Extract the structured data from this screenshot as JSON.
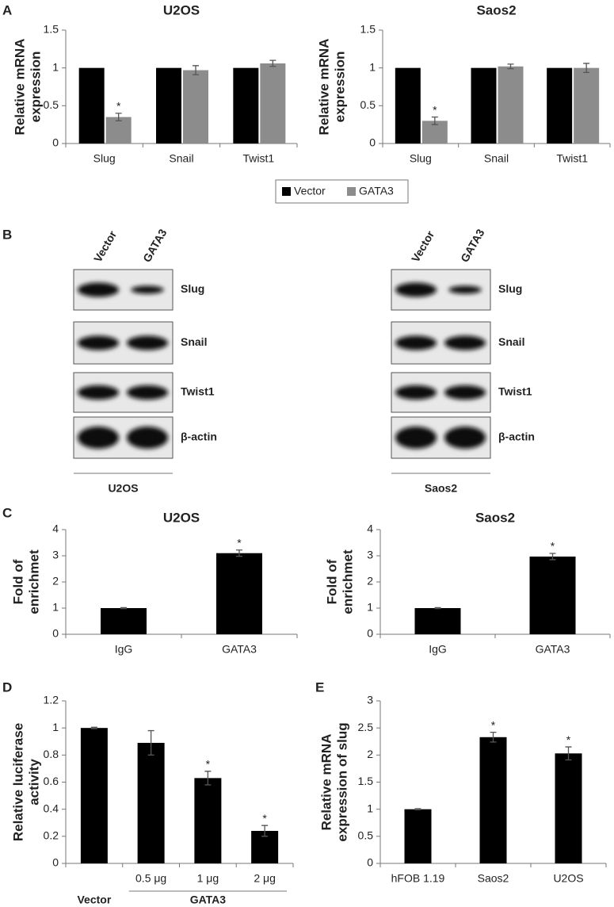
{
  "panel_labels": [
    "A",
    "B",
    "C",
    "D",
    "E"
  ],
  "chart_data": [
    {
      "type": "bar",
      "title": "U2OS",
      "ylabel": [
        "Relative mRNA",
        "expression"
      ],
      "categories": [
        "Slug",
        "Snail",
        "Twist1"
      ],
      "series": [
        {
          "name": "Vector",
          "color": "#000000",
          "values": [
            1,
            1,
            1
          ]
        },
        {
          "name": "GATA3",
          "color": "#8c8c8c",
          "values": [
            0.35,
            0.97,
            1.06
          ],
          "errors": [
            0.05,
            0.06,
            0.04
          ],
          "markers": [
            "*",
            null,
            null
          ]
        }
      ],
      "ylim": [
        0,
        1.5
      ],
      "yticks": [
        0,
        0.5,
        1,
        1.5
      ]
    },
    {
      "type": "bar",
      "title": "Saos2",
      "ylabel": [
        "Relative mRNA",
        "expression"
      ],
      "categories": [
        "Slug",
        "Snail",
        "Twist1"
      ],
      "series": [
        {
          "color": "#000000",
          "values": [
            1,
            1,
            1
          ]
        },
        {
          "color": "#8c8c8c",
          "values": [
            0.3,
            1.02,
            1.0
          ],
          "errors": [
            0.05,
            0.03,
            0.06
          ],
          "markers": [
            "*",
            null,
            null
          ]
        }
      ],
      "ylim": [
        0,
        1.5
      ],
      "yticks": [
        0,
        0.5,
        1,
        1.5
      ]
    },
    {
      "type": "bar",
      "title": "U2OS",
      "ylabel": [
        "Fold of",
        "enrichmet"
      ],
      "categories": [
        "IgG",
        "GATA3"
      ],
      "values": [
        1,
        3.1
      ],
      "errors": [
        0.02,
        0.12
      ],
      "markers": [
        null,
        "*"
      ],
      "color": "#000000",
      "ylim": [
        0,
        4
      ],
      "yticks": [
        0,
        1,
        2,
        3,
        4
      ]
    },
    {
      "type": "bar",
      "title": "Saos2",
      "ylabel": [
        "Fold of",
        "enrichmet"
      ],
      "categories": [
        "IgG",
        "GATA3"
      ],
      "values": [
        1,
        2.97
      ],
      "errors": [
        0.02,
        0.12
      ],
      "markers": [
        null,
        "*"
      ],
      "color": "#000000",
      "ylim": [
        0,
        4
      ],
      "yticks": [
        0,
        1,
        2,
        3,
        4
      ]
    },
    {
      "type": "bar",
      "ylabel": [
        "Relative luciferase",
        "activity"
      ],
      "categories": [
        null,
        "0.5 μg",
        "1 μg",
        "2 μg"
      ],
      "category_groups": [
        {
          "label": "Vector",
          "count": 1
        },
        {
          "label": "GATA3",
          "count": 3
        }
      ],
      "values": [
        1,
        0.89,
        0.63,
        0.24
      ],
      "errors": [
        0.005,
        0.09,
        0.05,
        0.04
      ],
      "markers": [
        null,
        null,
        "*",
        "*"
      ],
      "color": "#000000",
      "ylim": [
        0,
        1.2
      ],
      "yticks": [
        0,
        0.2,
        0.4,
        0.6,
        0.8,
        1,
        1.2
      ]
    },
    {
      "type": "bar",
      "ylabel": [
        "Relative mRNA",
        "expression of slug"
      ],
      "categories": [
        "hFOB 1.19",
        "Saos2",
        "U2OS"
      ],
      "values": [
        1,
        2.33,
        2.03
      ],
      "errors": [
        0.01,
        0.09,
        0.12
      ],
      "markers": [
        null,
        "*",
        "*"
      ],
      "color": "#000000",
      "ylim": [
        0,
        3
      ],
      "yticks": [
        0,
        0.5,
        1,
        1.5,
        2,
        2.5,
        3
      ]
    }
  ],
  "blots": [
    {
      "cell_line": "U2OS",
      "lanes": [
        "Vector",
        "GATA3"
      ],
      "bands": [
        "Slug",
        "Snail",
        "Twist1",
        "β-actin"
      ]
    },
    {
      "cell_line": "Saos2",
      "lanes": [
        "Vector",
        "GATA3"
      ],
      "bands": [
        "Slug",
        "Snail",
        "Twist1",
        "β-actin"
      ]
    }
  ]
}
